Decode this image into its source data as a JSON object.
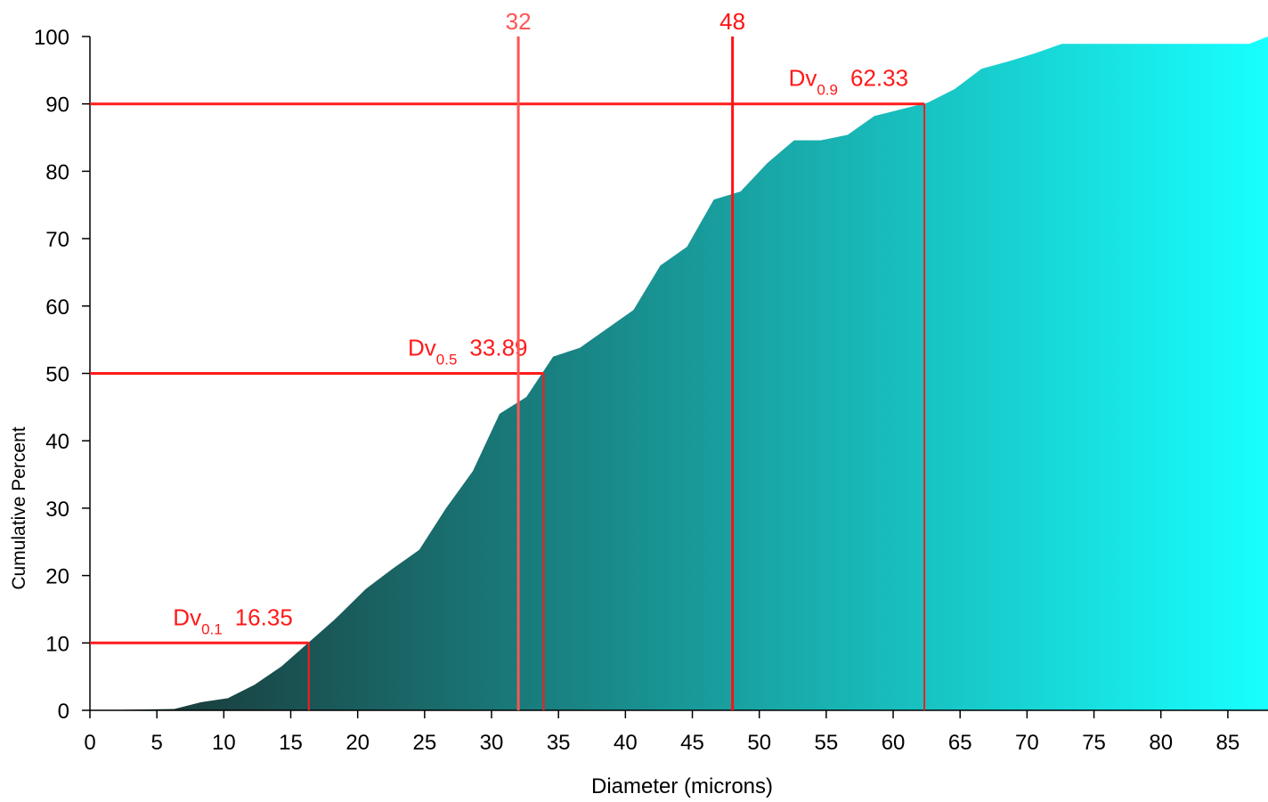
{
  "chart_data": {
    "type": "area",
    "xlabel": "Diameter (microns)",
    "ylabel": "Cumulative Percent",
    "xlim": [
      0,
      88
    ],
    "ylim": [
      0,
      100
    ],
    "x_ticks": [
      "0",
      "5",
      "10",
      "15",
      "20",
      "25",
      "30",
      "35",
      "40",
      "45",
      "50",
      "55",
      "60",
      "65",
      "70",
      "75",
      "80",
      "85"
    ],
    "y_ticks": [
      "0",
      "10",
      "20",
      "30",
      "40",
      "50",
      "60",
      "70",
      "80",
      "90",
      "100"
    ],
    "grid": false,
    "fill_gradient": [
      "#1a2e2e",
      "#18ffff"
    ],
    "annotation_color": "#ff1a1a",
    "series": [
      {
        "x": [
          0,
          6.3,
          8.3,
          10.3,
          12.3,
          14.3,
          16.3,
          18.3,
          20.6,
          22.6,
          24.6,
          26.6,
          28.6,
          30.6,
          32.6,
          34.6,
          36.6,
          38.6,
          40.6,
          42.6,
          44.6,
          46.6,
          48.6,
          50.6,
          52.6,
          54.6,
          56.6,
          58.6,
          60.6,
          62.6,
          64.6,
          66.6,
          68.6,
          70.6,
          72.6,
          74.6,
          76.6,
          78.6,
          80.6,
          82.6,
          84.6,
          86.6,
          88
        ],
        "y": [
          0,
          0.2,
          1.2,
          1.8,
          3.8,
          6.5,
          10,
          13.5,
          18,
          21,
          23.8,
          30,
          35.5,
          44,
          46.5,
          52.5,
          53.8,
          56.6,
          59.4,
          66,
          68.8,
          75.8,
          77,
          81.2,
          84.6,
          84.6,
          85.4,
          88.2,
          89.2,
          90.2,
          92.2,
          95.2,
          96.3,
          97.5,
          98.9,
          98.9,
          98.9,
          98.9,
          98.9,
          98.9,
          98.9,
          98.9,
          100
        ]
      }
    ],
    "dv_lines": [
      {
        "label": "Dv",
        "sub": "0.1",
        "value": "16.35",
        "x": 16.35,
        "y": 10
      },
      {
        "label": "Dv",
        "sub": "0.5",
        "value": "33.89",
        "x": 33.89,
        "y": 50
      },
      {
        "label": "Dv",
        "sub": "0.9",
        "value": "62.33",
        "x": 62.33,
        "y": 90
      }
    ],
    "markers": [
      {
        "label": "32",
        "x": 32,
        "color": "#ff5555"
      },
      {
        "label": "48",
        "x": 48,
        "color": "#ff1111"
      }
    ]
  }
}
